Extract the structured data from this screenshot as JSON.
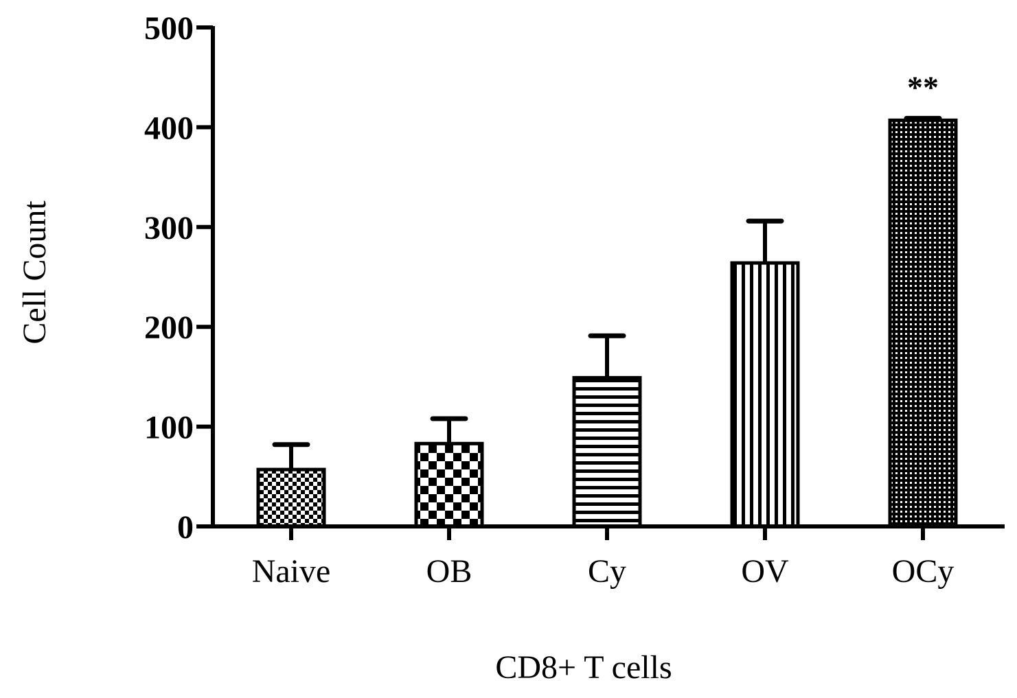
{
  "chart_data": {
    "type": "bar",
    "title": "",
    "xlabel": "CD8+ T cells",
    "ylabel": "Cell Count",
    "ylim": [
      0,
      500
    ],
    "yticks": [
      0,
      100,
      200,
      300,
      400,
      500
    ],
    "categories": [
      "Naive",
      "OB",
      "Cy",
      "OV",
      "OCy"
    ],
    "values": [
      57,
      83,
      149,
      264,
      407
    ],
    "error_upper": [
      25,
      25,
      42,
      42,
      2
    ],
    "patterns": [
      "fine-checker",
      "coarse-checker",
      "horizontal-stripes",
      "vertical-stripes",
      "dots"
    ],
    "annotations": [
      {
        "category": "OCy",
        "text": "**"
      }
    ],
    "grid": false,
    "legend": "none",
    "colors": {
      "bar_fill": "#000000",
      "background": "#ffffff"
    }
  }
}
